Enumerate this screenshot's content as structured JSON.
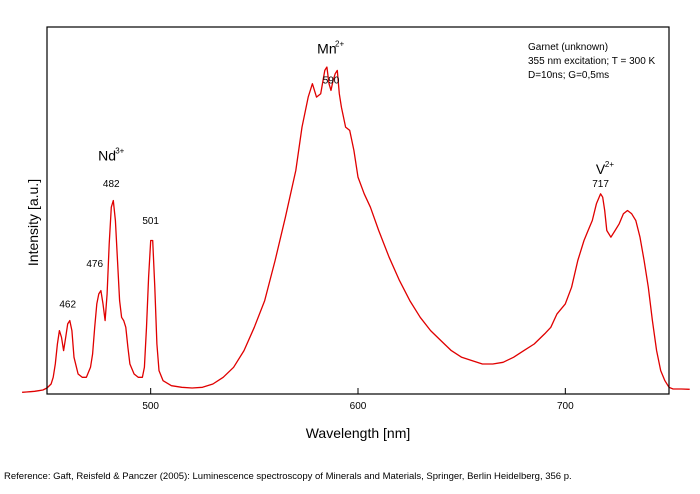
{
  "chart_data": {
    "type": "line",
    "xlabel": "Wavelength [nm]",
    "ylabel": "Intensity [a.u.]",
    "xlim": [
      450,
      750
    ],
    "x_ticks": [
      500,
      600,
      700
    ],
    "y_ticks": [],
    "grid": false,
    "line_color": "#e00000",
    "info_lines": [
      "Garnet (unknown)",
      "355 nm excitation; T = 300 K",
      "D=10ns; G=0,5ms"
    ],
    "ion_labels": [
      {
        "base": "Nd",
        "sup": "3+",
        "x": 479,
        "y": 0.7
      },
      {
        "base": "Mn",
        "sup": "2+",
        "x": 585,
        "y": 1.02
      },
      {
        "base": "V",
        "sup": "2+",
        "x": 717,
        "y": 0.66
      }
    ],
    "peak_labels": [
      {
        "text": "462",
        "x": 460,
        "y": 0.26
      },
      {
        "text": "476",
        "x": 473,
        "y": 0.38
      },
      {
        "text": "482",
        "x": 481,
        "y": 0.62
      },
      {
        "text": "501",
        "x": 500,
        "y": 0.51
      },
      {
        "text": "590",
        "x": 587,
        "y": 0.93
      },
      {
        "text": "717",
        "x": 717,
        "y": 0.62
      }
    ],
    "series": [
      {
        "points": [
          [
            438,
            0.005
          ],
          [
            440,
            0.006
          ],
          [
            442,
            0.007
          ],
          [
            444,
            0.008
          ],
          [
            446,
            0.01
          ],
          [
            448,
            0.012
          ],
          [
            450,
            0.018
          ],
          [
            452,
            0.03
          ],
          [
            453,
            0.05
          ],
          [
            454,
            0.09
          ],
          [
            455,
            0.15
          ],
          [
            456,
            0.19
          ],
          [
            457,
            0.17
          ],
          [
            458,
            0.13
          ],
          [
            459,
            0.17
          ],
          [
            460,
            0.21
          ],
          [
            461,
            0.22
          ],
          [
            462,
            0.19
          ],
          [
            463,
            0.11
          ],
          [
            465,
            0.06
          ],
          [
            467,
            0.05
          ],
          [
            469,
            0.05
          ],
          [
            471,
            0.08
          ],
          [
            472,
            0.12
          ],
          [
            473,
            0.2
          ],
          [
            474,
            0.27
          ],
          [
            475,
            0.3
          ],
          [
            476,
            0.31
          ],
          [
            477,
            0.27
          ],
          [
            478,
            0.22
          ],
          [
            479,
            0.3
          ],
          [
            480,
            0.45
          ],
          [
            481,
            0.56
          ],
          [
            482,
            0.58
          ],
          [
            483,
            0.52
          ],
          [
            484,
            0.4
          ],
          [
            485,
            0.28
          ],
          [
            486,
            0.23
          ],
          [
            487,
            0.22
          ],
          [
            488,
            0.2
          ],
          [
            489,
            0.14
          ],
          [
            490,
            0.09
          ],
          [
            492,
            0.06
          ],
          [
            494,
            0.05
          ],
          [
            496,
            0.05
          ],
          [
            497,
            0.08
          ],
          [
            498,
            0.2
          ],
          [
            499,
            0.35
          ],
          [
            500,
            0.46
          ],
          [
            501,
            0.46
          ],
          [
            502,
            0.32
          ],
          [
            503,
            0.15
          ],
          [
            504,
            0.07
          ],
          [
            506,
            0.04
          ],
          [
            510,
            0.025
          ],
          [
            515,
            0.02
          ],
          [
            520,
            0.018
          ],
          [
            525,
            0.02
          ],
          [
            530,
            0.03
          ],
          [
            535,
            0.05
          ],
          [
            540,
            0.08
          ],
          [
            545,
            0.13
          ],
          [
            550,
            0.2
          ],
          [
            555,
            0.28
          ],
          [
            560,
            0.4
          ],
          [
            565,
            0.53
          ],
          [
            570,
            0.67
          ],
          [
            573,
            0.8
          ],
          [
            576,
            0.89
          ],
          [
            578,
            0.93
          ],
          [
            580,
            0.89
          ],
          [
            582,
            0.9
          ],
          [
            584,
            0.97
          ],
          [
            585,
            0.98
          ],
          [
            586,
            0.93
          ],
          [
            587,
            0.91
          ],
          [
            588,
            0.94
          ],
          [
            589,
            0.96
          ],
          [
            590,
            0.97
          ],
          [
            591,
            0.9
          ],
          [
            592,
            0.86
          ],
          [
            594,
            0.8
          ],
          [
            596,
            0.79
          ],
          [
            598,
            0.73
          ],
          [
            600,
            0.65
          ],
          [
            603,
            0.6
          ],
          [
            606,
            0.56
          ],
          [
            610,
            0.49
          ],
          [
            615,
            0.41
          ],
          [
            620,
            0.34
          ],
          [
            625,
            0.28
          ],
          [
            630,
            0.23
          ],
          [
            635,
            0.19
          ],
          [
            640,
            0.16
          ],
          [
            645,
            0.13
          ],
          [
            650,
            0.11
          ],
          [
            655,
            0.1
          ],
          [
            660,
            0.09
          ],
          [
            665,
            0.09
          ],
          [
            670,
            0.095
          ],
          [
            675,
            0.11
          ],
          [
            680,
            0.13
          ],
          [
            685,
            0.15
          ],
          [
            690,
            0.18
          ],
          [
            693,
            0.2
          ],
          [
            696,
            0.24
          ],
          [
            700,
            0.27
          ],
          [
            703,
            0.32
          ],
          [
            706,
            0.4
          ],
          [
            709,
            0.46
          ],
          [
            711,
            0.49
          ],
          [
            713,
            0.52
          ],
          [
            715,
            0.57
          ],
          [
            717,
            0.6
          ],
          [
            718,
            0.59
          ],
          [
            719,
            0.55
          ],
          [
            720,
            0.49
          ],
          [
            722,
            0.47
          ],
          [
            724,
            0.49
          ],
          [
            726,
            0.51
          ],
          [
            728,
            0.54
          ],
          [
            730,
            0.55
          ],
          [
            732,
            0.54
          ],
          [
            734,
            0.52
          ],
          [
            736,
            0.47
          ],
          [
            738,
            0.4
          ],
          [
            740,
            0.32
          ],
          [
            742,
            0.22
          ],
          [
            744,
            0.13
          ],
          [
            746,
            0.07
          ],
          [
            748,
            0.04
          ],
          [
            750,
            0.02
          ],
          [
            752,
            0.015
          ],
          [
            756,
            0.015
          ],
          [
            760,
            0.014
          ]
        ]
      }
    ]
  },
  "footer": {
    "reference": "Reference: Gaft, Reisfeld & Panczer (2005): Luminescence spectroscopy of Minerals and Materials, Springer, Berlin Heidelberg, 356 p."
  }
}
